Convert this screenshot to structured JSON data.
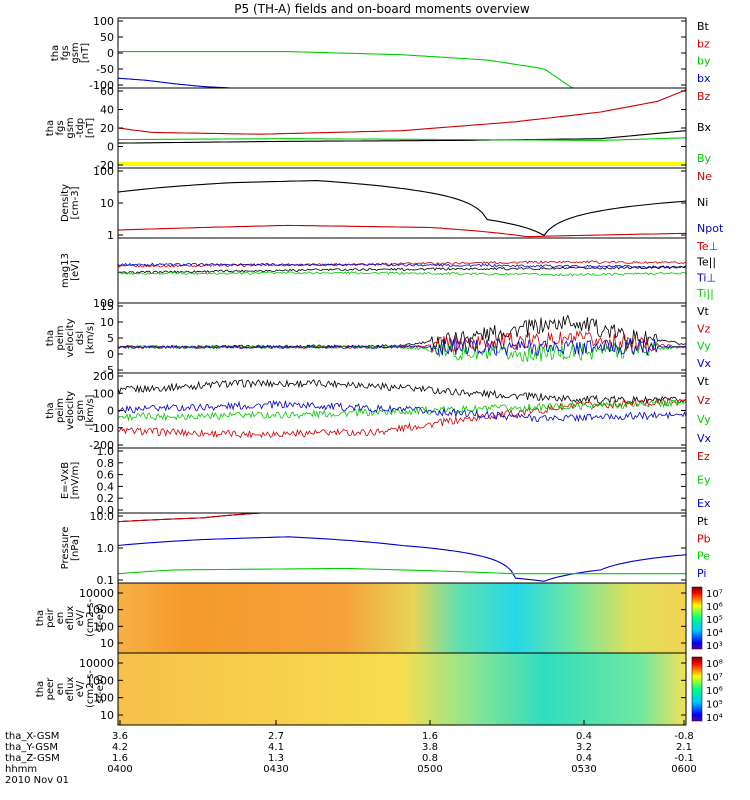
{
  "page_title": "P5 (TH-A) fields and on-board moments overview",
  "chart_data": {
    "type": "line",
    "title": "P5 (TH-A) fields and on-board moments overview",
    "time_axis": {
      "tick_labels": [
        "0400",
        "0430",
        "0500",
        "0530",
        "0600"
      ],
      "ephemeris_rows": [
        {
          "label": "tha_X-GSM",
          "values": [
            "3.6",
            "2.7",
            "1.6",
            "0.4",
            "-0.8"
          ]
        },
        {
          "label": "tha_Y-GSM",
          "values": [
            "4.2",
            "4.1",
            "3.8",
            "3.2",
            "2.1"
          ]
        },
        {
          "label": "tha_Z-GSM",
          "values": [
            "1.6",
            "1.3",
            "0.8",
            "0.4",
            "-0.1"
          ]
        },
        {
          "label": "hhmm",
          "values": [
            "0400",
            "0430",
            "0500",
            "0530",
            "0600"
          ]
        }
      ],
      "date_label": "2010 Nov 01"
    },
    "panels": [
      {
        "id": "fgs_gsm",
        "ylabel": [
          "tha",
          "fgs",
          "gsm",
          "[nT]"
        ],
        "ticks": [
          "100",
          "50",
          "0",
          "-50",
          "-100"
        ],
        "ylim": [
          -100,
          100
        ],
        "legend": [
          {
            "name": "Bt",
            "color": "#000000"
          },
          {
            "name": "bz",
            "color": "#cc0000"
          },
          {
            "name": "by",
            "color": "#00cc00"
          },
          {
            "name": "bx",
            "color": "#0000cc"
          }
        ],
        "series": [
          {
            "name": "by",
            "color": "#00cc00",
            "x": [
              0,
              0.3,
              0.5,
              0.65,
              0.75,
              0.8
            ],
            "y": [
              4,
              4,
              -5,
              -20,
              -45,
              -100
            ]
          },
          {
            "name": "bx",
            "color": "#0000cc",
            "x": [
              0,
              0.05,
              0.1,
              0.15,
              0.2
            ],
            "y": [
              -72,
              -78,
              -88,
              -96,
              -100
            ]
          }
        ]
      },
      {
        "id": "fgs_tdp",
        "ylabel": [
          "tha",
          "fgs",
          "gsm",
          "-tdp",
          "[nT]"
        ],
        "ticks": [
          "60",
          "40",
          "20",
          "0",
          "-20"
        ],
        "ylim": [
          -30,
          60
        ],
        "legend": [
          {
            "name": "Bz",
            "color": "#cc0000"
          },
          {
            "name": "Bx",
            "color": "#000000"
          },
          {
            "name": "By",
            "color": "#00cc00"
          }
        ],
        "series": [
          {
            "name": "Bz",
            "color": "#cc0000",
            "x": [
              0,
              0.06,
              0.25,
              0.5,
              0.7,
              0.85,
              0.95,
              1
            ],
            "y": [
              15,
              10,
              8,
              12,
              22,
              33,
              45,
              58
            ]
          },
          {
            "name": "Bx",
            "color": "#000000",
            "x": [
              0,
              0.3,
              0.6,
              0.85,
              1
            ],
            "y": [
              -2,
              0,
              1,
              3,
              12
            ]
          },
          {
            "name": "By",
            "color": "#00cc00",
            "x": [
              0,
              0.3,
              0.6,
              0.85,
              1
            ],
            "y": [
              2,
              3,
              2,
              1,
              4
            ]
          }
        ],
        "flag_color": "#ffff00"
      },
      {
        "id": "density",
        "ylabel": [
          "Density",
          "[cm-3]"
        ],
        "ticks": [
          "100",
          "10",
          "1"
        ],
        "log": true,
        "ylim": [
          0.4,
          180
        ],
        "legend": [
          {
            "name": "Ne",
            "color": "#cc0000"
          },
          {
            "name": "Ni",
            "color": "#000000"
          },
          {
            "name": "Npot",
            "color": "#0000cc"
          }
        ],
        "series": [
          {
            "name": "Ni",
            "color": "#000000",
            "x": [
              0,
              0.2,
              0.35,
              0.5,
              0.65,
              0.75,
              1
            ],
            "y": [
              22,
              50,
              60,
              30,
              2,
              0.5,
              10
            ]
          },
          {
            "name": "Ne",
            "color": "#cc0000",
            "x": [
              0,
              0.3,
              0.55,
              0.72,
              1
            ],
            "y": [
              0.8,
              1.2,
              1.0,
              0.45,
              0.6
            ]
          }
        ]
      },
      {
        "id": "temperature",
        "ylabel": [
          "mag13",
          "[eV]"
        ],
        "ticks": [
          "100"
        ],
        "log": true,
        "ylim": [
          100,
          100000
        ],
        "legend": [
          {
            "name": "Te⊥",
            "color": "#cc0000"
          },
          {
            "name": "Te||",
            "color": "#000000"
          },
          {
            "name": "Ti⊥",
            "color": "#0000cc"
          },
          {
            "name": "Ti||",
            "color": "#00cc00"
          }
        ],
        "series": [
          {
            "name": "Te⊥",
            "color": "#cc0000",
            "x": [
              0,
              0.4,
              0.8,
              1
            ],
            "y": [
              5000,
              6000,
              8000,
              7000
            ]
          },
          {
            "name": "Ti⊥",
            "color": "#0000cc",
            "x": [
              0,
              0.4,
              0.8,
              1
            ],
            "y": [
              6000,
              6000,
              5000,
              4500
            ]
          },
          {
            "name": "Te||",
            "color": "#000000",
            "x": [
              0,
              0.4,
              0.8,
              1
            ],
            "y": [
              2500,
              3500,
              4000,
              4500
            ]
          },
          {
            "name": "Ti||",
            "color": "#00cc00",
            "x": [
              0,
              0.4,
              0.8,
              1
            ],
            "y": [
              2300,
              2500,
              2000,
              2400
            ]
          }
        ]
      },
      {
        "id": "velocity_dsl",
        "ylabel": [
          "tha",
          "peim",
          "velocity",
          "dsl",
          "[km/s]"
        ],
        "ticks": [
          "15",
          "10",
          "5",
          "0",
          "-5"
        ],
        "ylim": [
          -10,
          17
        ],
        "legend": [
          {
            "name": "Vt",
            "color": "#000000"
          },
          {
            "name": "Vz",
            "color": "#cc0000"
          },
          {
            "name": "Vy",
            "color": "#00cc00"
          },
          {
            "name": "Vx",
            "color": "#0000cc"
          }
        ],
        "series": [
          {
            "name": "Vt",
            "color": "#000000",
            "x": [
              0,
              0.5,
              0.65,
              0.8,
              0.9,
              1
            ],
            "y": [
              0,
              0.5,
              5,
              10,
              4,
              1
            ]
          },
          {
            "name": "Vz",
            "color": "#cc0000",
            "x": [
              0,
              0.5,
              0.65,
              0.8,
              1
            ],
            "y": [
              0,
              0,
              2,
              3,
              0
            ]
          },
          {
            "name": "Vy",
            "color": "#00cc00",
            "x": [
              0,
              0.5,
              0.65,
              0.8,
              1
            ],
            "y": [
              0,
              0,
              -3,
              -2,
              0
            ]
          },
          {
            "name": "Vx",
            "color": "#0000cc",
            "x": [
              0,
              0.5,
              1
            ],
            "y": [
              0,
              0,
              0
            ]
          }
        ]
      },
      {
        "id": "velocity_gsm",
        "ylabel": [
          "tha",
          "peim",
          "velocity",
          "gsm",
          "[km/s]"
        ],
        "ticks": [
          "200",
          "100",
          "0",
          "-100",
          "-200"
        ],
        "ylim": [
          -210,
          220
        ],
        "legend": [
          {
            "name": "Vt",
            "color": "#000000"
          },
          {
            "name": "Vz",
            "color": "#cc0000"
          },
          {
            "name": "Vy",
            "color": "#00cc00"
          },
          {
            "name": "Vx",
            "color": "#0000cc"
          }
        ],
        "series": [
          {
            "name": "Vt",
            "color": "#000000",
            "x": [
              0,
              0.2,
              0.4,
              0.6,
              0.8,
              1
            ],
            "y": [
              120,
              160,
              160,
              110,
              70,
              60
            ]
          },
          {
            "name": "Vz",
            "color": "#cc0000",
            "x": [
              0,
              0.2,
              0.45,
              0.6,
              0.8,
              1
            ],
            "y": [
              -110,
              -130,
              -120,
              -50,
              30,
              60
            ]
          },
          {
            "name": "Vy",
            "color": "#00cc00",
            "x": [
              0,
              0.3,
              0.6,
              1
            ],
            "y": [
              -30,
              -20,
              10,
              50
            ]
          },
          {
            "name": "Vx",
            "color": "#0000cc",
            "x": [
              0,
              0.3,
              0.55,
              0.75,
              1
            ],
            "y": [
              10,
              40,
              0,
              -40,
              -20
            ]
          }
        ]
      },
      {
        "id": "efield",
        "ylabel": [
          "E=-VxB",
          "[mV/m]"
        ],
        "ticks": [
          "1.0",
          "0.8",
          "0.6",
          "0.4",
          "0.2",
          "0.0"
        ],
        "ylim": [
          0,
          1
        ],
        "legend": [
          {
            "name": "Ez",
            "color": "#cc0000"
          },
          {
            "name": "Ey",
            "color": "#00cc00"
          },
          {
            "name": "Ex",
            "color": "#0000cc"
          }
        ],
        "series": []
      },
      {
        "id": "pressure",
        "ylabel": [
          "Pressure",
          "[nPa]"
        ],
        "ticks": [
          "10.0",
          "1.0",
          "0.1"
        ],
        "log": true,
        "ylim": [
          0.015,
          25
        ],
        "legend": [
          {
            "name": "Pt",
            "color": "#000000"
          },
          {
            "name": "Pb",
            "color": "#cc0000"
          },
          {
            "name": "Pe",
            "color": "#00cc00"
          },
          {
            "name": "Pi",
            "color": "#0000cc"
          }
        ],
        "series": [
          {
            "name": "Pt",
            "color": "#000000",
            "x": [
              0,
              0.15,
              0.25
            ],
            "y": [
              10,
              15,
              25
            ]
          },
          {
            "name": "Pb",
            "color": "#cc0000",
            "x": [
              0,
              0.15,
              0.25
            ],
            "y": [
              10,
              15,
              25
            ]
          },
          {
            "name": "Pi",
            "color": "#0000cc",
            "x": [
              0,
              0.15,
              0.3,
              0.5,
              0.7,
              0.75,
              0.85,
              1
            ],
            "y": [
              0.8,
              1.5,
              2.0,
              0.8,
              0.025,
              0.018,
              0.06,
              0.3
            ]
          },
          {
            "name": "Pe",
            "color": "#00cc00",
            "x": [
              0,
              0.1,
              0.4,
              0.7,
              1
            ],
            "y": [
              0.04,
              0.06,
              0.07,
              0.04,
              0.04
            ]
          }
        ]
      },
      {
        "id": "ion_spectrogram",
        "type": "heatmap",
        "ylabel": [
          "tha",
          "peir",
          "en",
          "eflux",
          "eV/",
          "(cm2-s-",
          "sr-eV)"
        ],
        "ticks": [
          "10000",
          "1000",
          "100",
          "10"
        ],
        "colorbar_ticks": [
          "10⁷",
          "10⁶",
          "10⁵",
          "10⁴",
          "10³"
        ]
      },
      {
        "id": "electron_spectrogram",
        "type": "heatmap",
        "ylabel": [
          "tha",
          "peer",
          "en",
          "eflux",
          "eV/",
          "(cm2-s-",
          "sr-eV)"
        ],
        "ticks": [
          "10000",
          "1000",
          "100",
          "10"
        ],
        "colorbar_ticks": [
          "10⁸",
          "10⁷",
          "10⁶",
          "10⁵",
          "10⁴"
        ]
      }
    ]
  }
}
